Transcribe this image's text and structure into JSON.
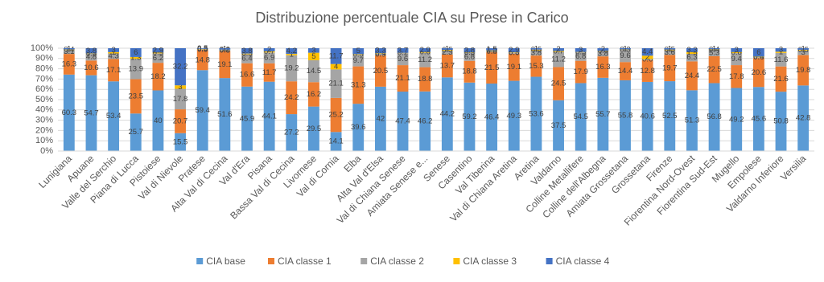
{
  "chart_data": {
    "type": "bar",
    "stacking": "percent",
    "title": "Distribuzione percentuale CIA su Prese in Carico",
    "categories": [
      "Lunigiana",
      "Apuane",
      "Valle del Serchio",
      "Piana di Lucca",
      "Pistoiese",
      "Val di Nievole",
      "Pratese",
      "Alta Val di Cecina",
      "Val d'Era",
      "Pisana",
      "Bassa Val di Cecina",
      "Livornese",
      "Val di Cornia",
      "Elba",
      "Alta Val d'Elsa",
      "Val di Chiana Senese",
      "Amiata Senese e...",
      "Senese",
      "Casentino",
      "Val Tiberina",
      "Val di Chiana Aretina",
      "Aretina",
      "Valdarno",
      "Colline Metallifere",
      "Colline dell'Albegna",
      "Amiata Grossetana",
      "Grossetana",
      "Firenze",
      "Fiorentina Nord-Ovest",
      "Fiorentina Sud-Est",
      "Mugello",
      "Empolese",
      "Valdarno Inferiore",
      "Versilia"
    ],
    "series": [
      {
        "name": "CIA base",
        "color": "#5b9bd5",
        "values": [
          60.3,
          54.7,
          53.4,
          25.7,
          40.0,
          15.5,
          59.4,
          51.6,
          45.9,
          44.1,
          27.2,
          29.5,
          14.1,
          39.6,
          42.0,
          47.4,
          46.2,
          44.2,
          59.2,
          46.4,
          49.3,
          53.6,
          37.5,
          54.5,
          55.7,
          55.8,
          40.6,
          52.5,
          51.3,
          56.8,
          49.2,
          45.6,
          50.8,
          42.8
        ]
      },
      {
        "name": "CIA classe 1",
        "color": "#ed7d31",
        "values": [
          16.3,
          10.6,
          17.1,
          23.5,
          18.2,
          20.7,
          14.8,
          19.1,
          16.6,
          11.7,
          24.2,
          16.2,
          25.2,
          31.3,
          20.5,
          21.1,
          18.8,
          13.7,
          18.8,
          21.5,
          19.1,
          15.3,
          24.5,
          17.9,
          16.3,
          14.4,
          12.8,
          19.7,
          24.4,
          22.5,
          17.8,
          20.6,
          21.6,
          19.8
        ]
      },
      {
        "name": "CIA classe 2",
        "color": "#a5a5a5",
        "values": [
          3.1,
          4.8,
          4.3,
          13.9,
          6.2,
          17.8,
          0.5,
          0.8,
          6.4,
          6.9,
          19.2,
          14.5,
          21.1,
          9.7,
          0.9,
          9.6,
          11.2,
          2.3,
          6.8,
          0.8,
          0.6,
          3.8,
          11.2,
          6.8,
          3.8,
          9.6,
          0.6,
          3.6,
          6.3,
          5.3,
          9.4,
          0.6,
          11.6,
          3.0
        ]
      },
      {
        "name": "CIA classe 3",
        "color": "#ffc000",
        "values": [
          0.4,
          0.3,
          1.0,
          1.3,
          0.5,
          3.0,
          0.3,
          0.2,
          0.5,
          0.7,
          1.0,
          5.0,
          4.0,
          0.5,
          0.4,
          0.2,
          0.6,
          0.5,
          0.3,
          0.5,
          0.3,
          0.5,
          0.7,
          0.3,
          0.4,
          0.3,
          2.0,
          0.5,
          1.5,
          0.4,
          0.8,
          0.4,
          1.0,
          0.5
        ]
      },
      {
        "name": "CIA classe 4",
        "color": "#4472c4",
        "values": [
          1.0,
          3.8,
          3.0,
          6.0,
          2.9,
          32.2,
          0.5,
          1.0,
          3.8,
          2.0,
          4.2,
          3.0,
          11.7,
          5.0,
          3.3,
          3.7,
          2.9,
          1.0,
          3.8,
          1.5,
          2.9,
          1.0,
          2.0,
          3.0,
          2.0,
          1.0,
          4.4,
          1.0,
          3.3,
          1.0,
          3.0,
          6.0,
          3.0,
          1.0
        ]
      }
    ],
    "ylim": [
      0,
      100
    ],
    "yticks": [
      {
        "value": 0,
        "label": "0%"
      },
      {
        "value": 10,
        "label": "10%"
      },
      {
        "value": 20,
        "label": "20%"
      },
      {
        "value": 30,
        "label": "30%"
      },
      {
        "value": 40,
        "label": "40%"
      },
      {
        "value": 50,
        "label": "50%"
      },
      {
        "value": 60,
        "label": "60%"
      },
      {
        "value": 70,
        "label": "70%"
      },
      {
        "value": 80,
        "label": "80%"
      },
      {
        "value": 90,
        "label": "90%"
      },
      {
        "value": 100,
        "label": "100%"
      }
    ],
    "grid": true,
    "legend": "bottom"
  }
}
